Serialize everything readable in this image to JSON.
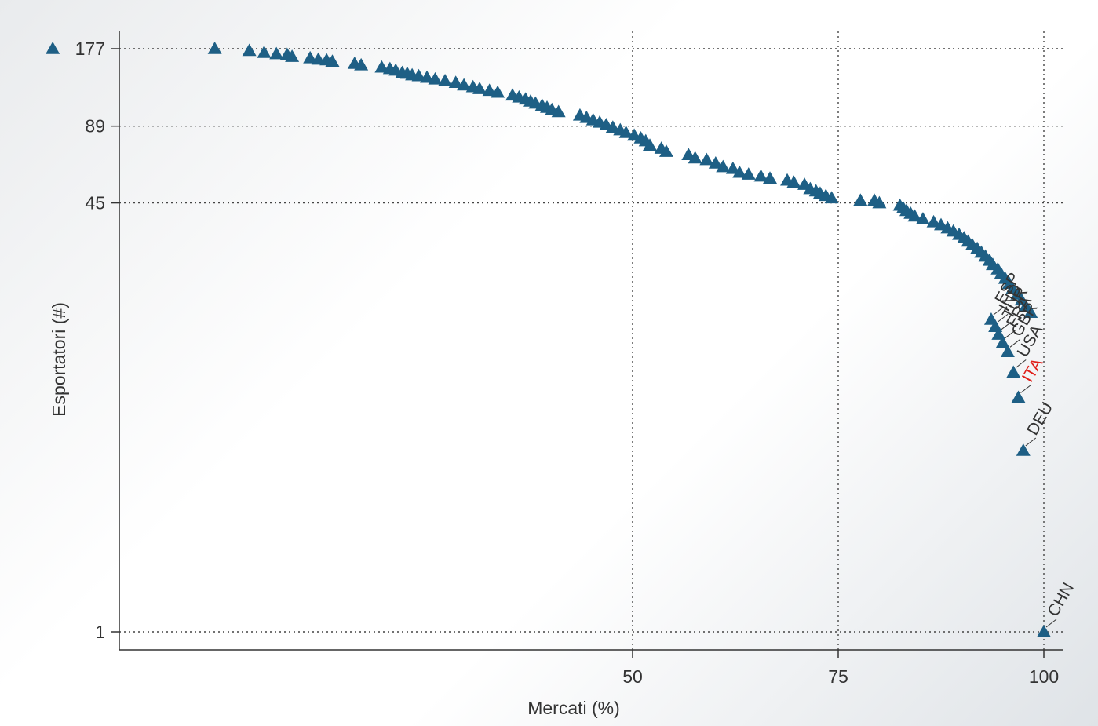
{
  "chart_data": {
    "type": "scatter",
    "title": "",
    "xlabel": "Mercati (%)",
    "ylabel": "Esportatori (#)",
    "x_ticks": [
      50,
      75,
      100
    ],
    "y_ticks": [
      177,
      89,
      45,
      1
    ],
    "y_scale": "log",
    "grid": true,
    "marker": "triangle",
    "marker_color": "#1e5f85",
    "highlight_color": "#e0201a",
    "points": [
      [
        -20.5,
        177
      ],
      [
        -0.8,
        177
      ],
      [
        3.4,
        174
      ],
      [
        5.2,
        171
      ],
      [
        6.7,
        169
      ],
      [
        8,
        168
      ],
      [
        8.6,
        165
      ],
      [
        10.8,
        163
      ],
      [
        11.8,
        161
      ],
      [
        12.8,
        160
      ],
      [
        13.5,
        158
      ],
      [
        16.2,
        155
      ],
      [
        17,
        153
      ],
      [
        19.5,
        150
      ],
      [
        20.5,
        148
      ],
      [
        21.2,
        146
      ],
      [
        22,
        143
      ],
      [
        22.6,
        142
      ],
      [
        23.2,
        140
      ],
      [
        24,
        139
      ],
      [
        25,
        137
      ],
      [
        26,
        135
      ],
      [
        27.2,
        133
      ],
      [
        28.5,
        131
      ],
      [
        29.5,
        128
      ],
      [
        30.6,
        126
      ],
      [
        31.4,
        124
      ],
      [
        32.6,
        122
      ],
      [
        33.6,
        120
      ],
      [
        35.4,
        117
      ],
      [
        36.2,
        115
      ],
      [
        37,
        113
      ],
      [
        37.6,
        111
      ],
      [
        38.2,
        109
      ],
      [
        39,
        107
      ],
      [
        39.6,
        105
      ],
      [
        40.2,
        103
      ],
      [
        41,
        101
      ],
      [
        43.6,
        98
      ],
      [
        44.4,
        96
      ],
      [
        45.2,
        94
      ],
      [
        46,
        92
      ],
      [
        46.8,
        90
      ],
      [
        47.6,
        88
      ],
      [
        48.5,
        86
      ],
      [
        49.2,
        84
      ],
      [
        50.2,
        82
      ],
      [
        51,
        80
      ],
      [
        51.6,
        78
      ],
      [
        52.1,
        75
      ],
      [
        53.5,
        73
      ],
      [
        54.1,
        71
      ],
      [
        56.8,
        69
      ],
      [
        57.6,
        67
      ],
      [
        59,
        66
      ],
      [
        60.1,
        64
      ],
      [
        61,
        62
      ],
      [
        62.2,
        61
      ],
      [
        63,
        59
      ],
      [
        64.1,
        58
      ],
      [
        65.6,
        57
      ],
      [
        66.7,
        56
      ],
      [
        68.8,
        55
      ],
      [
        69.6,
        54
      ],
      [
        70.9,
        53
      ],
      [
        71.6,
        51
      ],
      [
        72.3,
        50
      ],
      [
        72.8,
        49
      ],
      [
        73.5,
        48
      ],
      [
        74.2,
        47
      ],
      [
        77.7,
        46
      ],
      [
        79.4,
        46
      ],
      [
        80,
        45
      ],
      [
        82.5,
        44
      ],
      [
        82.9,
        43
      ],
      [
        83.3,
        42
      ],
      [
        83.8,
        41
      ],
      [
        84.3,
        40
      ],
      [
        85.3,
        39
      ],
      [
        86.6,
        38
      ],
      [
        87.5,
        37
      ],
      [
        88.3,
        36
      ],
      [
        89,
        35
      ],
      [
        89.7,
        34
      ],
      [
        90.3,
        33
      ],
      [
        90.8,
        32
      ],
      [
        91.3,
        31
      ],
      [
        91.9,
        30
      ],
      [
        92.4,
        29
      ],
      [
        92.9,
        28
      ],
      [
        93.4,
        27
      ],
      [
        93.8,
        26
      ],
      [
        94.4,
        25
      ],
      [
        94.8,
        24
      ],
      [
        95.3,
        23
      ],
      [
        95.8,
        22
      ],
      [
        96.2,
        21
      ],
      [
        96.8,
        20
      ],
      [
        97.3,
        19
      ],
      [
        97.8,
        18
      ],
      [
        98.4,
        17
      ]
    ],
    "labels": [
      {
        "text": "ESP",
        "x": 93.6,
        "y": 16,
        "highlight": false
      },
      {
        "text": "IND",
        "x": 94.1,
        "y": 15,
        "highlight": false
      },
      {
        "text": "TUR",
        "x": 94.5,
        "y": 14,
        "highlight": false
      },
      {
        "text": "FRA",
        "x": 95,
        "y": 13,
        "highlight": false
      },
      {
        "text": "GBR",
        "x": 95.6,
        "y": 12,
        "highlight": false
      },
      {
        "text": "USA",
        "x": 96.3,
        "y": 10,
        "highlight": false
      },
      {
        "text": "ITA",
        "x": 96.9,
        "y": 8,
        "highlight": true
      },
      {
        "text": "DEU",
        "x": 97.5,
        "y": 5,
        "highlight": false
      },
      {
        "text": "CHN",
        "x": 100,
        "y": 1,
        "highlight": false
      }
    ]
  }
}
